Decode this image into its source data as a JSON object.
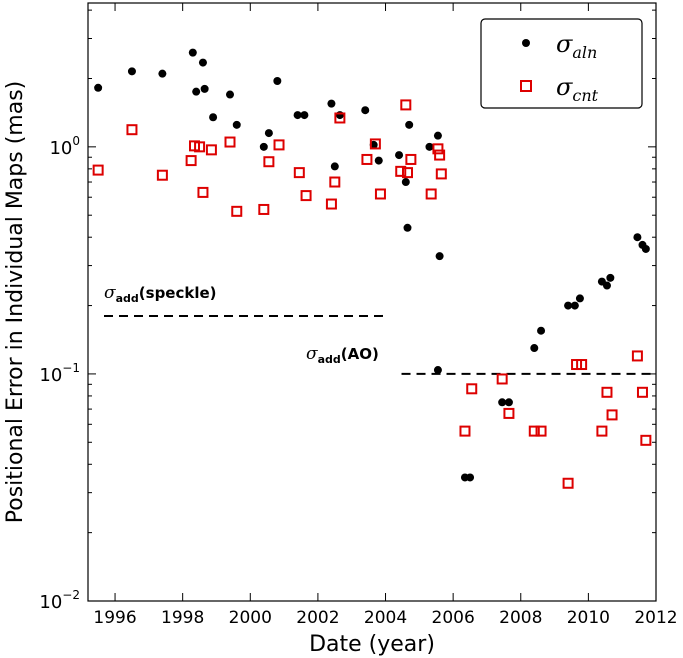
{
  "chart_data": {
    "type": "scatter",
    "xlabel": "Date (year)",
    "ylabel": "Positional Error in Individual Maps (mas)",
    "xlim": [
      1995.2,
      2012.0
    ],
    "ylim": [
      0.01,
      4.3
    ],
    "yscale": "log",
    "grid": false,
    "legend_position": "top-right",
    "x_ticks": [
      1996,
      1998,
      2000,
      2002,
      2004,
      2006,
      2008,
      2010,
      2012
    ],
    "x_tick_labels": [
      "1996",
      "1998",
      "2000",
      "2002",
      "2004",
      "2006",
      "2008",
      "2010",
      "2012"
    ],
    "y_ticks": [
      0.01,
      0.1,
      1.0
    ],
    "y_tick_labels": [
      {
        "base": "10",
        "exp": "−2"
      },
      {
        "base": "10",
        "exp": "−1"
      },
      {
        "base": "10",
        "exp": "0"
      }
    ],
    "series": [
      {
        "name": "σ",
        "subscript": "aln",
        "marker": "filled-circle",
        "color": "#000000",
        "points": [
          [
            1995.5,
            1.82
          ],
          [
            1996.5,
            2.15
          ],
          [
            1997.4,
            2.1
          ],
          [
            1998.3,
            2.6
          ],
          [
            1998.4,
            1.75
          ],
          [
            1998.6,
            2.35
          ],
          [
            1998.65,
            1.8
          ],
          [
            1998.9,
            1.35
          ],
          [
            1999.4,
            1.7
          ],
          [
            1999.6,
            1.25
          ],
          [
            2000.4,
            1.0
          ],
          [
            2000.55,
            1.15
          ],
          [
            2000.8,
            1.95
          ],
          [
            2001.4,
            1.38
          ],
          [
            2001.6,
            1.38
          ],
          [
            2002.4,
            1.55
          ],
          [
            2002.5,
            0.82
          ],
          [
            2002.65,
            1.38
          ],
          [
            2003.4,
            1.45
          ],
          [
            2003.65,
            1.02
          ],
          [
            2003.8,
            0.87
          ],
          [
            2004.4,
            0.92
          ],
          [
            2004.6,
            0.7
          ],
          [
            2004.65,
            0.44
          ],
          [
            2004.7,
            1.25
          ],
          [
            2005.3,
            1.0
          ],
          [
            2005.55,
            1.12
          ],
          [
            2005.6,
            0.33
          ],
          [
            2005.55,
            0.104
          ],
          [
            2006.35,
            0.035
          ],
          [
            2006.5,
            0.035
          ],
          [
            2007.45,
            0.075
          ],
          [
            2007.65,
            0.075
          ],
          [
            2008.4,
            0.13
          ],
          [
            2008.6,
            0.155
          ],
          [
            2009.4,
            0.2
          ],
          [
            2009.6,
            0.2
          ],
          [
            2009.75,
            0.215
          ],
          [
            2010.4,
            0.255
          ],
          [
            2010.55,
            0.245
          ],
          [
            2010.65,
            0.265
          ],
          [
            2011.45,
            0.4
          ],
          [
            2011.6,
            0.37
          ],
          [
            2011.7,
            0.355
          ]
        ]
      },
      {
        "name": "σ",
        "subscript": "cnt",
        "marker": "open-square",
        "color": "#dd0000",
        "points": [
          [
            1995.5,
            0.79
          ],
          [
            1996.5,
            1.19
          ],
          [
            1997.4,
            0.75
          ],
          [
            1998.25,
            0.87
          ],
          [
            1998.35,
            1.01
          ],
          [
            1998.5,
            1.0
          ],
          [
            1998.6,
            0.63
          ],
          [
            1998.85,
            0.97
          ],
          [
            1999.4,
            1.05
          ],
          [
            1999.6,
            0.52
          ],
          [
            2000.4,
            0.53
          ],
          [
            2000.55,
            0.86
          ],
          [
            2000.85,
            1.02
          ],
          [
            2001.45,
            0.77
          ],
          [
            2001.65,
            0.61
          ],
          [
            2002.4,
            0.56
          ],
          [
            2002.5,
            0.7
          ],
          [
            2002.65,
            1.34
          ],
          [
            2003.45,
            0.88
          ],
          [
            2003.7,
            1.03
          ],
          [
            2003.85,
            0.62
          ],
          [
            2004.45,
            0.78
          ],
          [
            2004.6,
            1.53
          ],
          [
            2004.65,
            0.77
          ],
          [
            2004.75,
            0.88
          ],
          [
            2005.35,
            0.62
          ],
          [
            2005.55,
            0.98
          ],
          [
            2005.6,
            0.92
          ],
          [
            2005.65,
            0.76
          ],
          [
            2006.35,
            0.056
          ],
          [
            2006.55,
            0.086
          ],
          [
            2007.45,
            0.095
          ],
          [
            2007.65,
            0.067
          ],
          [
            2008.4,
            0.056
          ],
          [
            2008.6,
            0.056
          ],
          [
            2009.4,
            0.033
          ],
          [
            2009.65,
            0.11
          ],
          [
            2009.8,
            0.11
          ],
          [
            2010.4,
            0.056
          ],
          [
            2010.55,
            0.083
          ],
          [
            2010.7,
            0.066
          ],
          [
            2011.45,
            0.12
          ],
          [
            2011.6,
            0.083
          ],
          [
            2011.7,
            0.051
          ]
        ]
      }
    ],
    "reference_lines": [
      {
        "label_symbol": "σ",
        "label_subscript": "add",
        "label_text": "(speckle)",
        "y": 0.18,
        "x_range": [
          1995.2,
          2004.0
        ],
        "style": "dashed"
      },
      {
        "label_symbol": "σ",
        "label_subscript": "add",
        "label_text": "(AO)",
        "y": 0.1,
        "x_range": [
          2004.0,
          2012.0
        ],
        "style": "dashed"
      }
    ]
  }
}
